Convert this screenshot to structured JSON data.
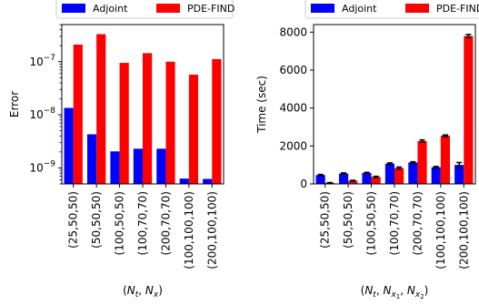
{
  "chart_data": [
    {
      "type": "bar",
      "ylabel": "Error",
      "xlabel": "(N_t, N_x)",
      "yscale": "log",
      "ylim": [
        5e-10,
        5e-07
      ],
      "yticks": [
        {
          "value": 1e-09,
          "base": "10",
          "exp": "−9"
        },
        {
          "value": 1e-08,
          "base": "10",
          "exp": "−8"
        },
        {
          "value": 1e-07,
          "base": "10",
          "exp": "−7"
        }
      ],
      "categories": [
        "(25,50,50)",
        "(50,50,50)",
        "(100,50,50)",
        "(100,70,70)",
        "(200,70,70)",
        "(100,100,100)",
        "(200,100,100)"
      ],
      "legend": {
        "placement": "top"
      },
      "series": [
        {
          "name": "Adjoint",
          "color": "#0000ff",
          "values": [
            1.35e-08,
            4.3e-09,
            2.05e-09,
            2.3e-09,
            2.3e-09,
            6.3e-10,
            6.2e-10
          ]
        },
        {
          "name": "PDE-FIND",
          "color": "#ff0000",
          "values": [
            2.1e-07,
            3.3e-07,
            9.5e-08,
            1.45e-07,
            1e-07,
            5.7e-08,
            1.12e-07
          ]
        }
      ]
    },
    {
      "type": "bar",
      "ylabel": "Time (sec)",
      "xlabel": "(N_t, N_x1, N_x2)",
      "ylim": [
        0,
        8400
      ],
      "yticks": [
        0,
        2000,
        4000,
        6000,
        8000
      ],
      "categories": [
        "(25,50,50)",
        "(50,50,50)",
        "(100,50,50)",
        "(100,70,70)",
        "(200,70,70)",
        "(100,100,100)",
        "(200,100,100)"
      ],
      "legend": {
        "placement": "top"
      },
      "error_bars": true,
      "series": [
        {
          "name": "Adjoint",
          "color": "#0000ff",
          "values": [
            470,
            550,
            580,
            1070,
            1130,
            880,
            1000
          ],
          "errors": [
            30,
            30,
            30,
            40,
            40,
            40,
            130
          ]
        },
        {
          "name": "PDE-FIND",
          "color": "#ff0000",
          "values": [
            60,
            170,
            370,
            840,
            2260,
            2540,
            7800
          ],
          "errors": [
            10,
            20,
            30,
            50,
            60,
            40,
            80
          ]
        }
      ]
    }
  ]
}
